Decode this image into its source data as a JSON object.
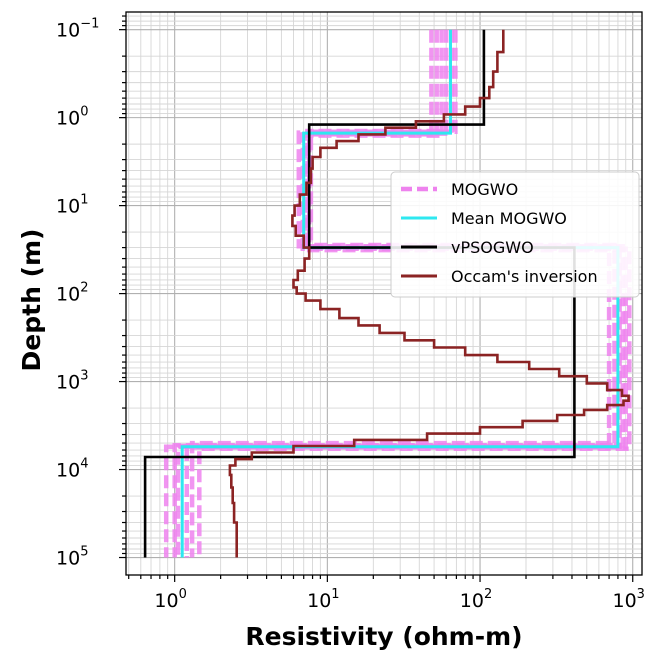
{
  "chart_data": {
    "type": "line",
    "title": "",
    "xlabel": "Resistivity (ohm-m)",
    "ylabel": "Depth (m)",
    "xscale": "log",
    "yscale": "log",
    "yinverted": true,
    "xlim": [
      0.48,
      1150
    ],
    "ylim": [
      0.063,
      158000
    ],
    "grid": "on (major and minor)",
    "legend_placement": "right",
    "x_ticks": [
      {
        "base": "10",
        "exp": "0",
        "value": 1
      },
      {
        "base": "10",
        "exp": "1",
        "value": 10
      },
      {
        "base": "10",
        "exp": "2",
        "value": 100
      },
      {
        "base": "10",
        "exp": "3",
        "value": 1000
      }
    ],
    "y_ticks": [
      {
        "base": "10",
        "exp": "−1",
        "value": 0.1
      },
      {
        "base": "10",
        "exp": "0",
        "value": 1
      },
      {
        "base": "10",
        "exp": "1",
        "value": 10
      },
      {
        "base": "10",
        "exp": "2",
        "value": 100
      },
      {
        "base": "10",
        "exp": "3",
        "value": 1000
      },
      {
        "base": "10",
        "exp": "4",
        "value": 10000
      },
      {
        "base": "10",
        "exp": "5",
        "value": 100000
      }
    ],
    "series": [
      {
        "name": "MOGWO",
        "style": "dashed",
        "color": "#ee82ee",
        "models": [
          [
            [
              48,
              0.1
            ],
            [
              48,
              1.48
            ],
            [
              6.5,
              1.48
            ],
            [
              6.5,
              29
            ],
            [
              860,
              29
            ],
            [
              860,
              5300
            ],
            [
              1.0,
              5300
            ],
            [
              1.0,
              100000
            ]
          ],
          [
            [
              52,
              0.1
            ],
            [
              52,
              1.55
            ],
            [
              6.9,
              1.55
            ],
            [
              6.9,
              31
            ],
            [
              900,
              31
            ],
            [
              900,
              5600
            ],
            [
              1.2,
              5600
            ],
            [
              1.2,
              100000
            ]
          ],
          [
            [
              56,
              0.1
            ],
            [
              56,
              1.6
            ],
            [
              7.2,
              1.6
            ],
            [
              7.2,
              28
            ],
            [
              760,
              28
            ],
            [
              760,
              5000
            ],
            [
              1.3,
              5000
            ],
            [
              1.3,
              100000
            ]
          ],
          [
            [
              60,
              0.1
            ],
            [
              60,
              1.42
            ],
            [
              7.4,
              1.42
            ],
            [
              7.4,
              30
            ],
            [
              820,
              30
            ],
            [
              820,
              5500
            ],
            [
              0.88,
              5500
            ],
            [
              0.88,
              100000
            ]
          ],
          [
            [
              65,
              0.1
            ],
            [
              65,
              1.52
            ],
            [
              7.6,
              1.52
            ],
            [
              7.6,
              32
            ],
            [
              950,
              32
            ],
            [
              950,
              5800
            ],
            [
              1.45,
              5800
            ],
            [
              1.45,
              100000
            ]
          ],
          [
            [
              69,
              0.1
            ],
            [
              69,
              1.45
            ],
            [
              7.8,
              1.45
            ],
            [
              7.8,
              29.5
            ],
            [
              700,
              29.5
            ],
            [
              700,
              5400
            ],
            [
              1.05,
              5400
            ],
            [
              1.05,
              100000
            ]
          ]
        ]
      },
      {
        "name": "Mean MOGWO",
        "style": "solid",
        "color": "#2ee8f0",
        "points": [
          [
            64,
            0.1
          ],
          [
            64,
            1.5
          ],
          [
            7.0,
            1.5
          ],
          [
            7.0,
            30
          ],
          [
            800,
            30
          ],
          [
            800,
            5500
          ],
          [
            1.12,
            5500
          ],
          [
            1.12,
            100000
          ]
        ]
      },
      {
        "name": "vPSOGWO",
        "style": "solid",
        "color": "#000000",
        "points": [
          [
            106,
            0.1
          ],
          [
            106,
            1.2
          ],
          [
            7.6,
            1.2
          ],
          [
            7.6,
            30
          ],
          [
            415,
            30
          ],
          [
            415,
            7200
          ],
          [
            0.64,
            7200
          ],
          [
            0.64,
            100000
          ]
        ]
      },
      {
        "name": "Occam's inversion",
        "style": "step",
        "color": "#8b2323",
        "points": [
          [
            142,
            0.1
          ],
          [
            142,
            0.18
          ],
          [
            130,
            0.18
          ],
          [
            130,
            0.3
          ],
          [
            122,
            0.3
          ],
          [
            122,
            0.45
          ],
          [
            115,
            0.45
          ],
          [
            115,
            0.6
          ],
          [
            100,
            0.6
          ],
          [
            100,
            0.75
          ],
          [
            80,
            0.75
          ],
          [
            80,
            0.92
          ],
          [
            58,
            0.92
          ],
          [
            58,
            1.1
          ],
          [
            38,
            1.1
          ],
          [
            38,
            1.3
          ],
          [
            24,
            1.3
          ],
          [
            24,
            1.55
          ],
          [
            16,
            1.55
          ],
          [
            16,
            1.85
          ],
          [
            11.5,
            1.85
          ],
          [
            11.5,
            2.2
          ],
          [
            9,
            2.2
          ],
          [
            9,
            2.8
          ],
          [
            8,
            2.8
          ],
          [
            8,
            3.8
          ],
          [
            7.8,
            3.8
          ],
          [
            7.8,
            5.5
          ],
          [
            7.3,
            5.5
          ],
          [
            7.3,
            7.5
          ],
          [
            6.6,
            7.5
          ],
          [
            6.6,
            10
          ],
          [
            6.1,
            10
          ],
          [
            6.1,
            13
          ],
          [
            5.9,
            13
          ],
          [
            5.9,
            17
          ],
          [
            6.2,
            17
          ],
          [
            6.2,
            22
          ],
          [
            7.0,
            22
          ],
          [
            7.0,
            30
          ],
          [
            7.6,
            30
          ],
          [
            7.6,
            40
          ],
          [
            7.1,
            40
          ],
          [
            7.1,
            55
          ],
          [
            6.4,
            55
          ],
          [
            6.4,
            70
          ],
          [
            6.0,
            70
          ],
          [
            6.0,
            85
          ],
          [
            6.3,
            85
          ],
          [
            6.3,
            100
          ],
          [
            7.2,
            100
          ],
          [
            7.2,
            120
          ],
          [
            9,
            120
          ],
          [
            9,
            150
          ],
          [
            12,
            150
          ],
          [
            12,
            190
          ],
          [
            16,
            190
          ],
          [
            16,
            230
          ],
          [
            22,
            230
          ],
          [
            22,
            280
          ],
          [
            32,
            280
          ],
          [
            32,
            340
          ],
          [
            50,
            340
          ],
          [
            50,
            410
          ],
          [
            80,
            410
          ],
          [
            80,
            500
          ],
          [
            130,
            500
          ],
          [
            130,
            600
          ],
          [
            210,
            600
          ],
          [
            210,
            720
          ],
          [
            330,
            720
          ],
          [
            330,
            870
          ],
          [
            500,
            870
          ],
          [
            500,
            1050
          ],
          [
            680,
            1050
          ],
          [
            680,
            1250
          ],
          [
            850,
            1250
          ],
          [
            850,
            1450
          ],
          [
            940,
            1450
          ],
          [
            940,
            1650
          ],
          [
            870,
            1650
          ],
          [
            870,
            1850
          ],
          [
            680,
            1850
          ],
          [
            680,
            2100
          ],
          [
            480,
            2100
          ],
          [
            480,
            2400
          ],
          [
            320,
            2400
          ],
          [
            320,
            2800
          ],
          [
            190,
            2800
          ],
          [
            190,
            3300
          ],
          [
            100,
            3300
          ],
          [
            100,
            3900
          ],
          [
            45,
            3900
          ],
          [
            45,
            4600
          ],
          [
            15,
            4600
          ],
          [
            15,
            5400
          ],
          [
            6,
            5400
          ],
          [
            6,
            6400
          ],
          [
            3.2,
            6400
          ],
          [
            3.2,
            7600
          ],
          [
            2.5,
            7600
          ],
          [
            2.5,
            9000
          ],
          [
            2.3,
            9000
          ],
          [
            2.3,
            11500
          ],
          [
            2.35,
            11500
          ],
          [
            2.35,
            16000
          ],
          [
            2.4,
            16000
          ],
          [
            2.4,
            24000
          ],
          [
            2.45,
            24000
          ],
          [
            2.45,
            40000
          ],
          [
            2.55,
            40000
          ],
          [
            2.55,
            100000
          ]
        ]
      }
    ]
  }
}
